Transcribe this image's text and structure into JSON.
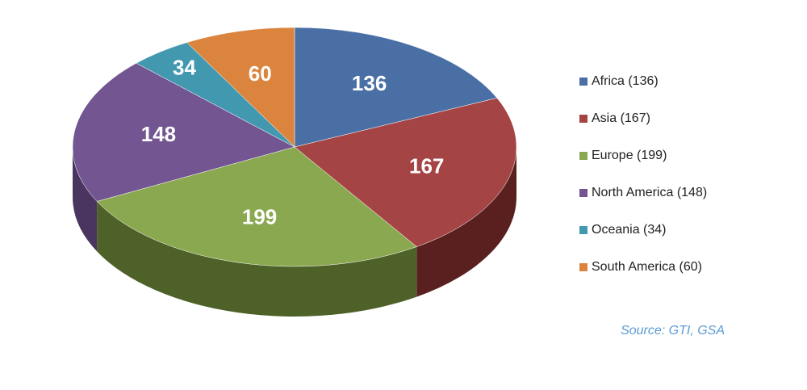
{
  "chart_data": {
    "type": "pie",
    "categories": [
      "Africa (136)",
      "Asia (167)",
      "Europe (199)",
      "North America (148)",
      "Oceania (34)",
      "South America (60)"
    ],
    "values": [
      136,
      167,
      199,
      148,
      34,
      60
    ],
    "colors": [
      "#4a6fa5",
      "#a54444",
      "#8aa84f",
      "#725591",
      "#4198af",
      "#db843d"
    ],
    "side_colors": [
      "#2f4a70",
      "#5a2020",
      "#4e6128",
      "#4a3560",
      "#2a6677",
      "#8a5222"
    ],
    "annotation": "Source: GTI, GSA",
    "legend": "right"
  }
}
